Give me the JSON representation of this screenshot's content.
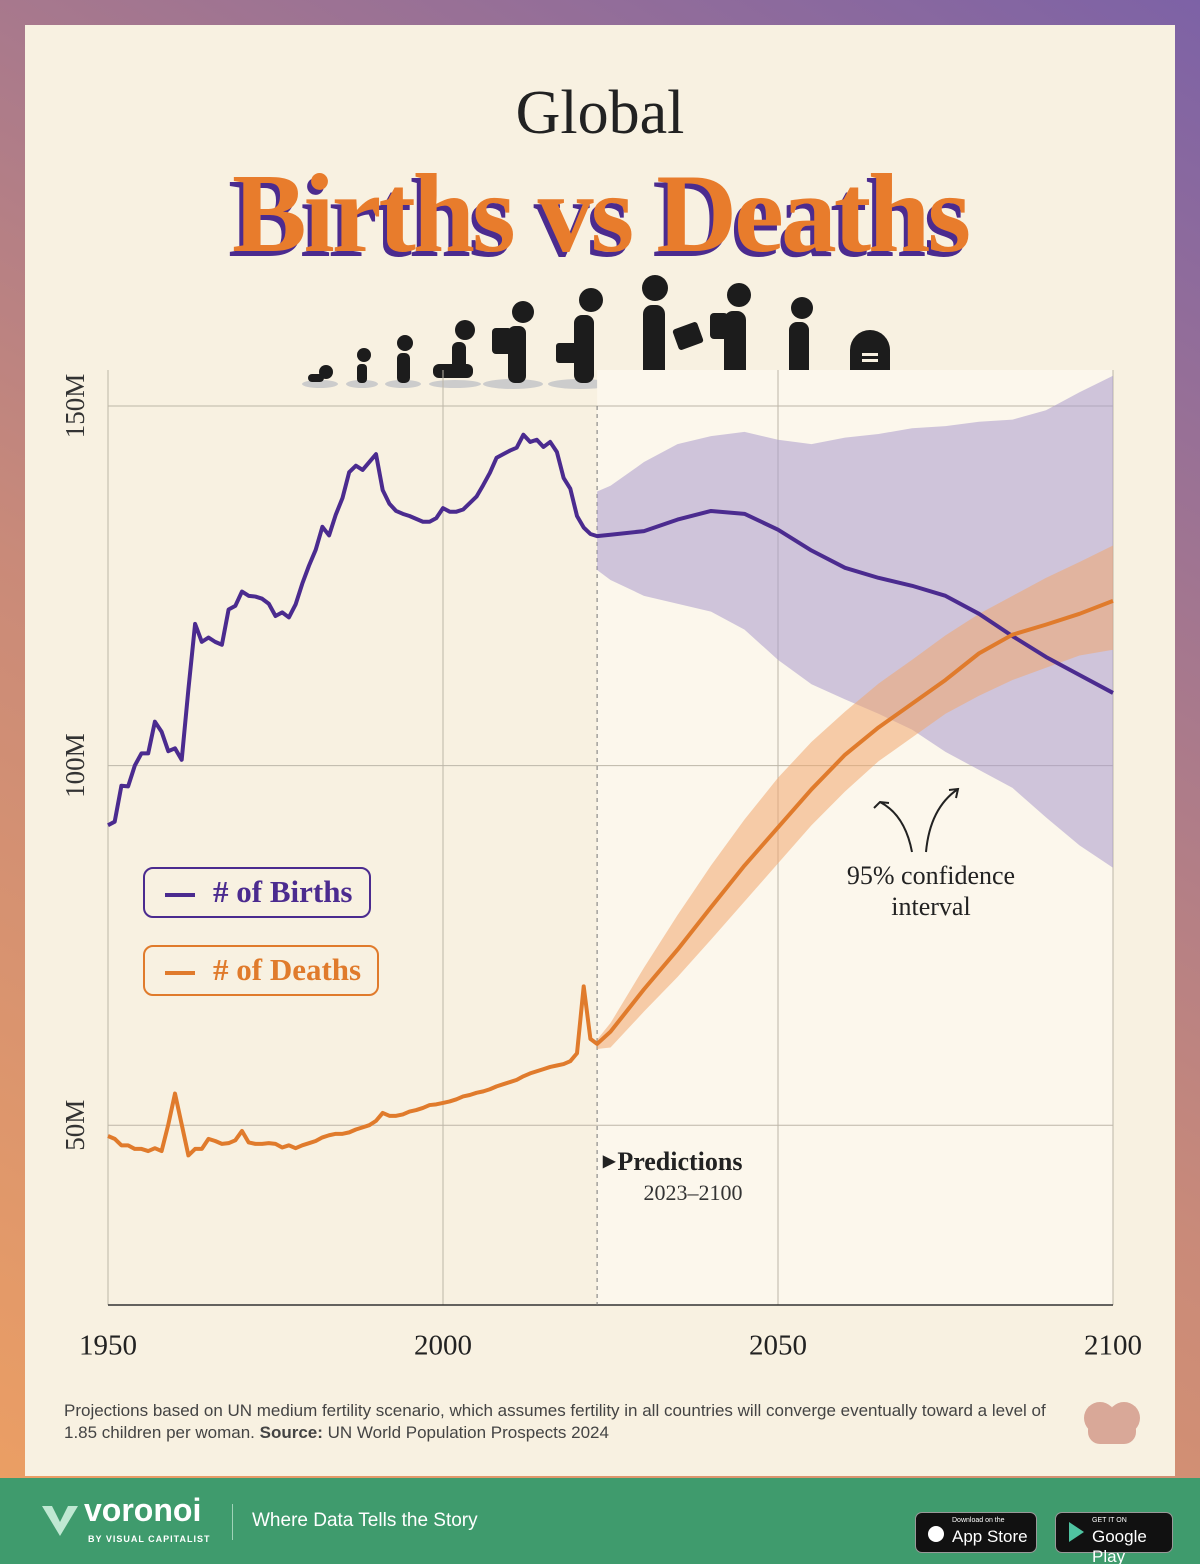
{
  "chart_data": {
    "type": "line",
    "supertitle": "Global",
    "title": "Births vs Deaths",
    "x": [
      1950,
      1951,
      1952,
      1953,
      1954,
      1955,
      1956,
      1957,
      1958,
      1959,
      1960,
      1961,
      1962,
      1963,
      1964,
      1965,
      1966,
      1967,
      1968,
      1969,
      1970,
      1971,
      1972,
      1973,
      1974,
      1975,
      1976,
      1977,
      1978,
      1979,
      1980,
      1981,
      1982,
      1983,
      1984,
      1985,
      1986,
      1987,
      1988,
      1989,
      1990,
      1991,
      1992,
      1993,
      1994,
      1995,
      1996,
      1997,
      1998,
      1999,
      2000,
      2001,
      2002,
      2003,
      2004,
      2005,
      2006,
      2007,
      2008,
      2009,
      2010,
      2011,
      2012,
      2013,
      2014,
      2015,
      2016,
      2017,
      2018,
      2019,
      2020,
      2021,
      2022,
      2023,
      2025,
      2030,
      2035,
      2040,
      2045,
      2050,
      2055,
      2060,
      2065,
      2070,
      2075,
      2080,
      2085,
      2090,
      2095,
      2100
    ],
    "series": [
      {
        "name": "# of Births",
        "color": "#4b2b8f",
        "values": [
          91.7,
          92.2,
          97.2,
          97.1,
          100,
          101.7,
          101.7,
          106.1,
          104.7,
          102,
          102.4,
          100.8,
          110.6,
          119.7,
          117.2,
          117.8,
          117.2,
          116.8,
          121.7,
          122.2,
          124.2,
          123.6,
          123.5,
          123.2,
          122.5,
          120.8,
          121.3,
          120.6,
          122.4,
          125.3,
          127.8,
          130,
          133.2,
          132,
          134.9,
          137.2,
          140.8,
          141.7,
          141.1,
          142.2,
          143.3,
          138.3,
          136.4,
          135.4,
          135,
          134.7,
          134.3,
          133.9,
          133.9,
          134.4,
          135.8,
          135.3,
          135.3,
          135.6,
          136.5,
          137.4,
          139,
          140.7,
          142.8,
          143.3,
          143.8,
          144.2,
          146,
          145,
          145.3,
          144.3,
          145,
          143.6,
          140,
          138.5,
          134.7,
          133.1,
          132.2,
          131.9,
          132.1,
          132.6,
          134.2,
          135.4,
          135,
          132.8,
          129.9,
          127.5,
          126.1,
          125,
          123.6,
          121.1,
          118,
          115.1,
          112.6,
          110.1
        ]
      },
      {
        "name": "# of Deaths",
        "color": "#e07b2c",
        "values": [
          48.5,
          48.1,
          47.2,
          47.2,
          46.7,
          46.7,
          46.4,
          46.8,
          46.4,
          50.1,
          54.4,
          50.1,
          45.8,
          46.7,
          46.7,
          48.1,
          47.8,
          47.4,
          47.5,
          47.9,
          49.2,
          47.6,
          47.4,
          47.4,
          47.5,
          47.4,
          46.9,
          47.2,
          46.8,
          47.2,
          47.5,
          47.8,
          48.3,
          48.6,
          48.8,
          48.8,
          49,
          49.4,
          49.7,
          50,
          50.6,
          51.7,
          51.3,
          51.3,
          51.5,
          51.9,
          52.1,
          52.4,
          52.8,
          52.9,
          53.1,
          53.3,
          53.6,
          54,
          54.2,
          54.5,
          54.7,
          55,
          55.4,
          55.7,
          56,
          56.3,
          56.8,
          57.2,
          57.5,
          57.8,
          58.1,
          58.3,
          58.5,
          58.9,
          60,
          69.3,
          62,
          61.3,
          63,
          68.9,
          74.4,
          80.3,
          86.1,
          91.4,
          96.7,
          101.5,
          105.3,
          108.6,
          111.9,
          115.6,
          118.2,
          119.6,
          121.1,
          122.9
        ]
      }
    ],
    "confidence_interval": {
      "label": "95% confidence interval",
      "x": [
        2023,
        2025,
        2030,
        2035,
        2040,
        2045,
        2050,
        2055,
        2060,
        2065,
        2070,
        2075,
        2080,
        2085,
        2090,
        2095,
        2100
      ],
      "bands": [
        {
          "color": "#a99bcc",
          "upper": [
            138.1,
            138.9,
            142.2,
            144.7,
            145.8,
            146.4,
            145.3,
            144.7,
            145.6,
            146.1,
            146.9,
            147.2,
            147.8,
            148.1,
            149.4,
            151.9,
            154.2
          ],
          "lower": [
            127.2,
            125.8,
            123.6,
            122.5,
            121.4,
            118.9,
            114.7,
            111.3,
            109.2,
            107.2,
            105,
            101.9,
            99.4,
            96.9,
            92.8,
            88.9,
            85.8
          ]
        },
        {
          "color": "#f0a870",
          "upper": [
            61.9,
            64.2,
            71.9,
            79.2,
            86.1,
            92.5,
            98.3,
            103.3,
            107.5,
            111.4,
            114.7,
            118.1,
            121.1,
            123.6,
            126.1,
            128.3,
            130.6
          ],
          "lower": [
            60.6,
            60.8,
            65.8,
            70.6,
            75.8,
            81.1,
            86.4,
            91.7,
            96.4,
            100.6,
            103.9,
            107.2,
            109.7,
            111.9,
            113.6,
            115.3,
            116.1
          ]
        }
      ]
    },
    "predictions": {
      "label": "Predictions",
      "range": "2023–2100",
      "start": 2023
    },
    "xlim": [
      1950,
      2100
    ],
    "xticks": [
      1950,
      2000,
      2050,
      2100
    ],
    "ylim": [
      25,
      155
    ],
    "yticks": [
      {
        "value": 50,
        "label": "50M"
      },
      {
        "value": 100,
        "label": "100M"
      },
      {
        "value": 150,
        "label": "150M"
      }
    ],
    "grid": true,
    "legend": "left",
    "note": "Projections based on UN medium fertility scenario, which assumes fertility in all countries will converge eventually toward a level of 1.85 children per woman.",
    "source_label": "Source:",
    "source": "UN World Population Prospects 2024"
  },
  "footer": {
    "brand": "voronoi",
    "byline": "BY VISUAL CAPITALIST",
    "tagline": "Where Data Tells the Story",
    "app_store": {
      "small": "Download on the",
      "big": "App Store"
    },
    "google_play": {
      "small": "GET IT ON",
      "big": "Google Play"
    }
  }
}
